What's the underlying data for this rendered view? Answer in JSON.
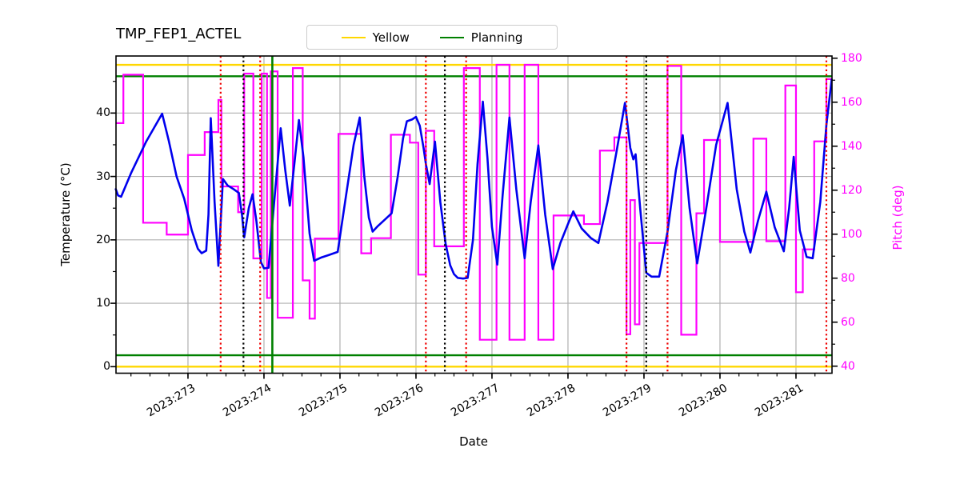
{
  "title": "TMP_FEP1_ACTEL",
  "legend": {
    "position": "top",
    "items": [
      {
        "label": "Yellow",
        "color": "#ffd700"
      },
      {
        "label": "Planning",
        "color": "#008000"
      }
    ]
  },
  "axes": {
    "x": {
      "label": "Date",
      "range": [
        272.053,
        281.474
      ],
      "major_tick_days": [
        273,
        274,
        275,
        276,
        277,
        278,
        279,
        280,
        281
      ],
      "tick_labels": [
        "2023:273",
        "2023:274",
        "2023:275",
        "2023:276",
        "2023:277",
        "2023:278",
        "2023:279",
        "2023:280",
        "2023:281"
      ],
      "minor_step": 0.25
    },
    "y_left": {
      "label": "Temperature (°C)",
      "range": [
        -1.03,
        49.0
      ],
      "ticks": [
        0,
        10,
        20,
        30,
        40
      ],
      "minor_step": 5,
      "color": "#000000"
    },
    "y_right": {
      "label": "Pitch (deg)",
      "range": [
        36.8,
        181.0
      ],
      "ticks": [
        40,
        60,
        80,
        100,
        120,
        140,
        160,
        180
      ],
      "minor_step": 10,
      "color": "#ff00ff"
    }
  },
  "chart_data": {
    "type": "line",
    "title": "TMP_FEP1_ACTEL",
    "xlabel": "Date",
    "grid": true,
    "grid_color": "#b0b0b0",
    "series": [
      {
        "name": "Temperature",
        "axis": "left",
        "color": "#0000ee",
        "style": "line",
        "points": [
          [
            272.05,
            28.0
          ],
          [
            272.08,
            27.0
          ],
          [
            272.12,
            26.8
          ],
          [
            272.25,
            30.5
          ],
          [
            272.45,
            35.5
          ],
          [
            272.66,
            39.9
          ],
          [
            272.75,
            35.5
          ],
          [
            272.85,
            30.0
          ],
          [
            272.95,
            26.5
          ],
          [
            273.05,
            21.5
          ],
          [
            273.13,
            18.6
          ],
          [
            273.18,
            17.9
          ],
          [
            273.24,
            18.3
          ],
          [
            273.27,
            24.0
          ],
          [
            273.3,
            39.2
          ],
          [
            273.35,
            26.0
          ],
          [
            273.4,
            15.9
          ],
          [
            273.46,
            29.6
          ],
          [
            273.52,
            28.6
          ],
          [
            273.6,
            28.0
          ],
          [
            273.67,
            27.4
          ],
          [
            273.71,
            24.0
          ],
          [
            273.74,
            20.4
          ],
          [
            273.8,
            25.0
          ],
          [
            273.85,
            27.2
          ],
          [
            273.9,
            23.0
          ],
          [
            273.96,
            16.5
          ],
          [
            274.0,
            15.5
          ],
          [
            274.06,
            15.6
          ],
          [
            274.12,
            24.0
          ],
          [
            274.22,
            37.6
          ],
          [
            274.28,
            31.0
          ],
          [
            274.34,
            25.4
          ],
          [
            274.4,
            32.0
          ],
          [
            274.46,
            38.9
          ],
          [
            274.52,
            33.0
          ],
          [
            274.6,
            21.0
          ],
          [
            274.66,
            16.7
          ],
          [
            274.75,
            17.2
          ],
          [
            274.85,
            17.6
          ],
          [
            274.97,
            18.1
          ],
          [
            275.08,
            27.0
          ],
          [
            275.18,
            35.0
          ],
          [
            275.26,
            39.3
          ],
          [
            275.32,
            30.0
          ],
          [
            275.38,
            23.5
          ],
          [
            275.43,
            21.3
          ],
          [
            275.5,
            22.2
          ],
          [
            275.6,
            23.3
          ],
          [
            275.68,
            24.2
          ],
          [
            275.76,
            30.0
          ],
          [
            275.83,
            36.0
          ],
          [
            275.88,
            38.7
          ],
          [
            275.95,
            39.0
          ],
          [
            276.0,
            39.4
          ],
          [
            276.05,
            38.0
          ],
          [
            276.1,
            34.5
          ],
          [
            276.13,
            32.0
          ],
          [
            276.18,
            28.8
          ],
          [
            276.25,
            35.5
          ],
          [
            276.32,
            26.0
          ],
          [
            276.39,
            19.4
          ],
          [
            276.45,
            16.0
          ],
          [
            276.5,
            14.6
          ],
          [
            276.55,
            14.0
          ],
          [
            276.62,
            13.9
          ],
          [
            276.68,
            14.0
          ],
          [
            276.75,
            20.0
          ],
          [
            276.81,
            32.0
          ],
          [
            276.88,
            41.8
          ],
          [
            276.94,
            33.0
          ],
          [
            277.0,
            22.0
          ],
          [
            277.07,
            16.1
          ],
          [
            277.14,
            27.0
          ],
          [
            277.23,
            39.3
          ],
          [
            277.32,
            28.0
          ],
          [
            277.43,
            17.1
          ],
          [
            277.51,
            26.0
          ],
          [
            277.61,
            34.9
          ],
          [
            277.7,
            24.0
          ],
          [
            277.8,
            15.4
          ],
          [
            277.9,
            19.5
          ],
          [
            278.0,
            22.5
          ],
          [
            278.07,
            24.5
          ],
          [
            278.18,
            21.8
          ],
          [
            278.3,
            20.3
          ],
          [
            278.4,
            19.5
          ],
          [
            278.52,
            26.0
          ],
          [
            278.64,
            34.0
          ],
          [
            278.75,
            41.6
          ],
          [
            278.82,
            34.5
          ],
          [
            278.86,
            32.7
          ],
          [
            278.89,
            33.5
          ],
          [
            278.95,
            25.0
          ],
          [
            279.03,
            14.8
          ],
          [
            279.1,
            14.2
          ],
          [
            279.2,
            14.2
          ],
          [
            279.31,
            21.3
          ],
          [
            279.42,
            31.0
          ],
          [
            279.51,
            36.5
          ],
          [
            279.6,
            25.0
          ],
          [
            279.7,
            16.3
          ],
          [
            279.82,
            25.0
          ],
          [
            279.95,
            35.0
          ],
          [
            280.1,
            41.6
          ],
          [
            280.22,
            28.0
          ],
          [
            280.32,
            21.3
          ],
          [
            280.4,
            18.0
          ],
          [
            280.5,
            23.0
          ],
          [
            280.61,
            27.6
          ],
          [
            280.72,
            22.0
          ],
          [
            280.84,
            18.2
          ],
          [
            280.91,
            25.0
          ],
          [
            280.97,
            33.1
          ],
          [
            281.05,
            21.5
          ],
          [
            281.14,
            17.3
          ],
          [
            281.22,
            17.1
          ],
          [
            281.32,
            26.0
          ],
          [
            281.4,
            38.1
          ],
          [
            281.47,
            45.3
          ]
        ]
      },
      {
        "name": "Pitch",
        "axis": "right",
        "color": "#ff00ff",
        "style": "step",
        "steps": [
          [
            272.05,
            272.15,
            150.5
          ],
          [
            272.15,
            272.41,
            172.5
          ],
          [
            272.41,
            272.72,
            105.2
          ],
          [
            272.72,
            273.0,
            99.8
          ],
          [
            273.0,
            273.22,
            136.0
          ],
          [
            273.22,
            273.4,
            146.4
          ],
          [
            273.4,
            273.44,
            161.0
          ],
          [
            273.44,
            273.66,
            121.7
          ],
          [
            273.66,
            273.74,
            110.0
          ],
          [
            273.74,
            273.86,
            173.0
          ],
          [
            273.86,
            273.97,
            89.0
          ],
          [
            273.97,
            274.04,
            173.0
          ],
          [
            274.04,
            274.09,
            71.0
          ],
          [
            274.09,
            274.18,
            174.0
          ],
          [
            274.18,
            274.38,
            62.0
          ],
          [
            274.38,
            274.51,
            175.5
          ],
          [
            274.51,
            274.6,
            79.0
          ],
          [
            274.6,
            274.67,
            61.6
          ],
          [
            274.67,
            274.98,
            98.0
          ],
          [
            274.98,
            275.28,
            145.6
          ],
          [
            275.28,
            275.41,
            91.3
          ],
          [
            275.41,
            275.67,
            98.2
          ],
          [
            275.67,
            275.92,
            145.2
          ],
          [
            275.92,
            276.03,
            141.6
          ],
          [
            276.03,
            276.13,
            81.6
          ],
          [
            276.13,
            276.24,
            147.0
          ],
          [
            276.24,
            276.63,
            94.5
          ],
          [
            276.63,
            276.84,
            175.5
          ],
          [
            276.84,
            277.06,
            52.0
          ],
          [
            277.06,
            277.23,
            177.0
          ],
          [
            277.23,
            277.43,
            52.0
          ],
          [
            277.43,
            277.61,
            177.0
          ],
          [
            277.61,
            277.81,
            52.0
          ],
          [
            277.81,
            278.21,
            108.5
          ],
          [
            278.21,
            278.42,
            104.6
          ],
          [
            278.42,
            278.61,
            138.0
          ],
          [
            278.61,
            278.77,
            144.0
          ],
          [
            278.77,
            278.82,
            54.5
          ],
          [
            278.82,
            278.88,
            115.5
          ],
          [
            278.88,
            278.94,
            59.0
          ],
          [
            278.94,
            279.31,
            96.0
          ],
          [
            279.31,
            279.49,
            176.5
          ],
          [
            279.49,
            279.69,
            54.3
          ],
          [
            279.69,
            279.79,
            109.5
          ],
          [
            279.79,
            280.0,
            142.8
          ],
          [
            280.0,
            280.44,
            96.5
          ],
          [
            280.44,
            280.61,
            143.4
          ],
          [
            280.61,
            280.86,
            96.8
          ],
          [
            280.86,
            281.0,
            167.6
          ],
          [
            281.0,
            281.09,
            73.6
          ],
          [
            281.09,
            281.24,
            93.1
          ],
          [
            281.24,
            281.4,
            142.2
          ],
          [
            281.4,
            281.47,
            170.5
          ]
        ]
      }
    ],
    "limit_lines": {
      "yellow": {
        "color": "#ffd700",
        "values_temperature": [
          0.0,
          47.6
        ]
      },
      "planning": {
        "color": "#008000",
        "values_temperature": [
          1.8,
          45.8
        ]
      }
    },
    "event_lines": {
      "red_dotted_days": [
        273.43,
        273.95,
        276.13,
        276.66,
        278.77,
        279.31,
        281.4
      ],
      "black_dotted_days": [
        273.73,
        276.38,
        279.03
      ],
      "green_solid_days": [
        274.11
      ],
      "red_color": "#ee0000",
      "black_color": "#000000",
      "green_color": "#008000"
    }
  }
}
